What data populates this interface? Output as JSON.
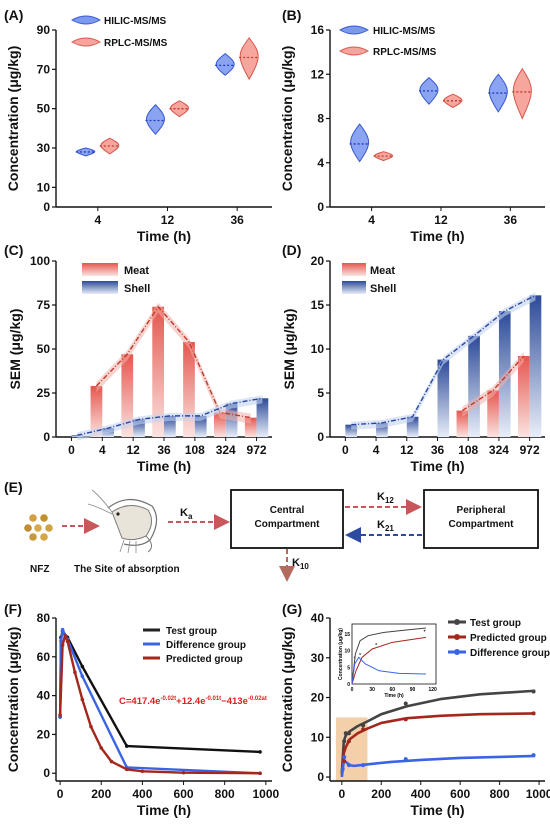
{
  "colors": {
    "blue": "#4f6ee8",
    "red": "#e46a5f",
    "black": "#222222",
    "darkred": "#a3271c",
    "orange": "#f2c89b",
    "navy": "#2c4a98"
  },
  "chart_data": [
    {
      "panel": "(A)",
      "type": "violin",
      "categories": [
        "4",
        "12",
        "36"
      ],
      "xlabel": "Time (h)",
      "ylabel": "Concentration (μg/kg)",
      "yticks": [
        "0",
        "10",
        "30",
        "50",
        "70",
        "90"
      ],
      "ylim": [
        0,
        90
      ],
      "legend": [
        "HILIC-MS/MS",
        "RPLC-MS/MS"
      ],
      "series": [
        {
          "name": "HILIC-MS/MS",
          "color": "blue",
          "medians": [
            28,
            44,
            72
          ],
          "ranges": [
            [
              26,
              30
            ],
            [
              37,
              52
            ],
            [
              67,
              78
            ]
          ]
        },
        {
          "name": "RPLC-MS/MS",
          "color": "red",
          "medians": [
            31,
            50,
            76
          ],
          "ranges": [
            [
              27,
              35
            ],
            [
              46,
              54
            ],
            [
              65,
              86
            ]
          ]
        }
      ]
    },
    {
      "panel": "(B)",
      "type": "violin",
      "categories": [
        "4",
        "12",
        "36"
      ],
      "xlabel": "Time (h)",
      "ylabel": "Concentration (μg/kg)",
      "yticks": [
        "0",
        "4",
        "8",
        "12",
        "16"
      ],
      "ylim": [
        0,
        16
      ],
      "legend": [
        "HILIC-MS/MS",
        "RPLC-MS/MS"
      ],
      "series": [
        {
          "name": "HILIC-MS/MS",
          "color": "blue",
          "medians": [
            5.7,
            10.5,
            10.3
          ],
          "ranges": [
            [
              4.1,
              7.5
            ],
            [
              9.3,
              11.7
            ],
            [
              8.6,
              12.0
            ]
          ]
        },
        {
          "name": "RPLC-MS/MS",
          "color": "red",
          "medians": [
            4.6,
            9.6,
            10.4
          ],
          "ranges": [
            [
              4.2,
              5.0
            ],
            [
              9.0,
              10.2
            ],
            [
              8.0,
              12.5
            ]
          ]
        }
      ]
    },
    {
      "panel": "(C)",
      "type": "bar",
      "categories": [
        "0",
        "4",
        "12",
        "36",
        "108",
        "324",
        "972"
      ],
      "xlabel": "Time (h)",
      "ylabel": "SEM (μg/kg)",
      "yticks": [
        "0",
        "25",
        "50",
        "75",
        "100"
      ],
      "ylim": [
        0,
        100
      ],
      "legend": [
        "Meat",
        "Shell"
      ],
      "series": [
        {
          "name": "Meat",
          "color": "red",
          "values": [
            0,
            29,
            47,
            74,
            54,
            14,
            11
          ]
        },
        {
          "name": "Shell",
          "color": "navy",
          "values": [
            1,
            5,
            10,
            12,
            12,
            19,
            22
          ]
        }
      ]
    },
    {
      "panel": "(D)",
      "type": "bar",
      "categories": [
        "0",
        "4",
        "12",
        "36",
        "108",
        "324",
        "972"
      ],
      "xlabel": "Time (h)",
      "ylabel": "SEM (μg/kg)",
      "yticks": [
        "0",
        "5",
        "10",
        "15",
        "20"
      ],
      "ylim": [
        0,
        20
      ],
      "legend": [
        "Meat",
        "Shell"
      ],
      "series": [
        {
          "name": "Meat",
          "color": "red",
          "values": [
            0,
            0,
            0,
            0,
            3,
            5.3,
            9.2
          ]
        },
        {
          "name": "Shell",
          "color": "navy",
          "values": [
            1.4,
            1.6,
            2.3,
            8.8,
            11.5,
            14.3,
            16.1
          ]
        }
      ]
    },
    {
      "panel": "(F)",
      "type": "line",
      "xlabel": "Time (h)",
      "ylabel": "Concentration (μg/kg)",
      "xticks": [
        "0",
        "200",
        "400",
        "600",
        "800",
        "1000"
      ],
      "xlim": [
        -20,
        1030
      ],
      "yticks": [
        "0",
        "20",
        "40",
        "60",
        "80"
      ],
      "ylim": [
        -4,
        80
      ],
      "annotation": "C=417.4e^{-0.02t}+12.4e^{-0.01t}−413e^{-0.02at}",
      "series": [
        {
          "name": "Test group",
          "color": "black",
          "x": [
            0,
            4,
            12,
            36,
            108,
            324,
            972
          ],
          "y": [
            29,
            70,
            73,
            70,
            55,
            14,
            11
          ]
        },
        {
          "name": "Difference group",
          "color": "blue",
          "x": [
            0,
            4,
            12,
            36,
            108,
            324,
            972
          ],
          "y": [
            29,
            68,
            74,
            69,
            50,
            3,
            0
          ]
        },
        {
          "name": "Predicted group",
          "color": "darkred",
          "x": [
            0,
            12,
            24,
            36,
            72,
            108,
            150,
            200,
            250,
            324,
            400,
            600,
            972
          ],
          "y": [
            30,
            66,
            71,
            68,
            52,
            38,
            24,
            13,
            6,
            2,
            1,
            0.3,
            0
          ]
        }
      ]
    },
    {
      "panel": "(G)",
      "type": "line",
      "xlabel": "Time (h)",
      "ylabel": "Concentration (μg/kg)",
      "xticks": [
        "0",
        "200",
        "400",
        "600",
        "800",
        "1000"
      ],
      "xlim": [
        -60,
        1030
      ],
      "yticks": [
        "0",
        "10",
        "20",
        "30",
        "40"
      ],
      "ylim": [
        -1,
        40
      ],
      "series": [
        {
          "name": "Test group",
          "color": "black",
          "x": [
            0,
            10,
            20,
            40,
            80,
            130,
            200,
            330,
            500,
            700,
            980
          ],
          "y": [
            1,
            9,
            10.5,
            11.5,
            12.8,
            14,
            15.8,
            17.8,
            19.6,
            20.8,
            21.7
          ]
        },
        {
          "name": "Predicted group",
          "color": "darkred",
          "x": [
            0,
            10,
            20,
            40,
            80,
            130,
            200,
            330,
            500,
            700,
            980
          ],
          "y": [
            0.5,
            6,
            7.5,
            9.5,
            11,
            12.2,
            13.6,
            14.8,
            15.4,
            15.8,
            16
          ]
        },
        {
          "name": "Difference group",
          "color": "blue",
          "x": [
            0,
            10,
            20,
            40,
            60,
            100,
            150,
            250,
            400,
            600,
            980
          ],
          "y": [
            0,
            4,
            3.8,
            3,
            2.8,
            3.0,
            3.3,
            3.8,
            4.3,
            4.8,
            5.3
          ]
        }
      ],
      "points": {
        "Test group": {
          "x": [
            12,
            20,
            36,
            108,
            324,
            972
          ],
          "y": [
            9,
            11,
            11,
            13,
            18.5,
            21.5
          ]
        },
        "Predicted group": {
          "x": [
            12,
            36,
            108,
            324,
            972
          ],
          "y": [
            4,
            9,
            12,
            14.5,
            16
          ]
        },
        "Difference group": {
          "x": [
            4,
            12,
            36,
            108,
            324,
            972
          ],
          "y": [
            2,
            5,
            3,
            3,
            4.5,
            5.5
          ]
        }
      },
      "inset": {
        "ylabel": "Concentration (μg/kg)",
        "xlabel": "Time (h)",
        "xticks": [
          "0",
          "30",
          "60",
          "90",
          "120"
        ],
        "yticks": [
          "0",
          "5",
          "10",
          "15"
        ]
      }
    }
  ],
  "labels": {
    "panelA": "(A)",
    "panelB": "(B)",
    "panelC": "(C)",
    "panelD": "(D)",
    "panelE": "(E)",
    "panelF": "(F)",
    "panelG": "(G)",
    "legHilic": "HILIC-MS/MS",
    "legRplc": "RPLC-MS/MS",
    "legMeat": "Meat",
    "legShell": "Shell",
    "legTest": "Test group",
    "legDiff": "Difference group",
    "legPred": "Predicted group",
    "diagram": {
      "nfz": "NFZ",
      "absorption": "The Site of absorption",
      "ka": "K",
      "ka_sub": "a",
      "central1": "Central",
      "central2": "Compartment",
      "peripheral1": "Peripheral",
      "peripheral2": "Compartment",
      "k12": "K",
      "k12_sub": "12",
      "k21": "K",
      "k21_sub": "21",
      "k10": "K",
      "k10_sub": "10"
    },
    "equation": {
      "c": "C=417.4e",
      "e1": "-0.02t",
      "p1": "+12.4e",
      "e2": "-0.01t",
      "p2": "−413e",
      "e3": "-0.02at"
    }
  }
}
